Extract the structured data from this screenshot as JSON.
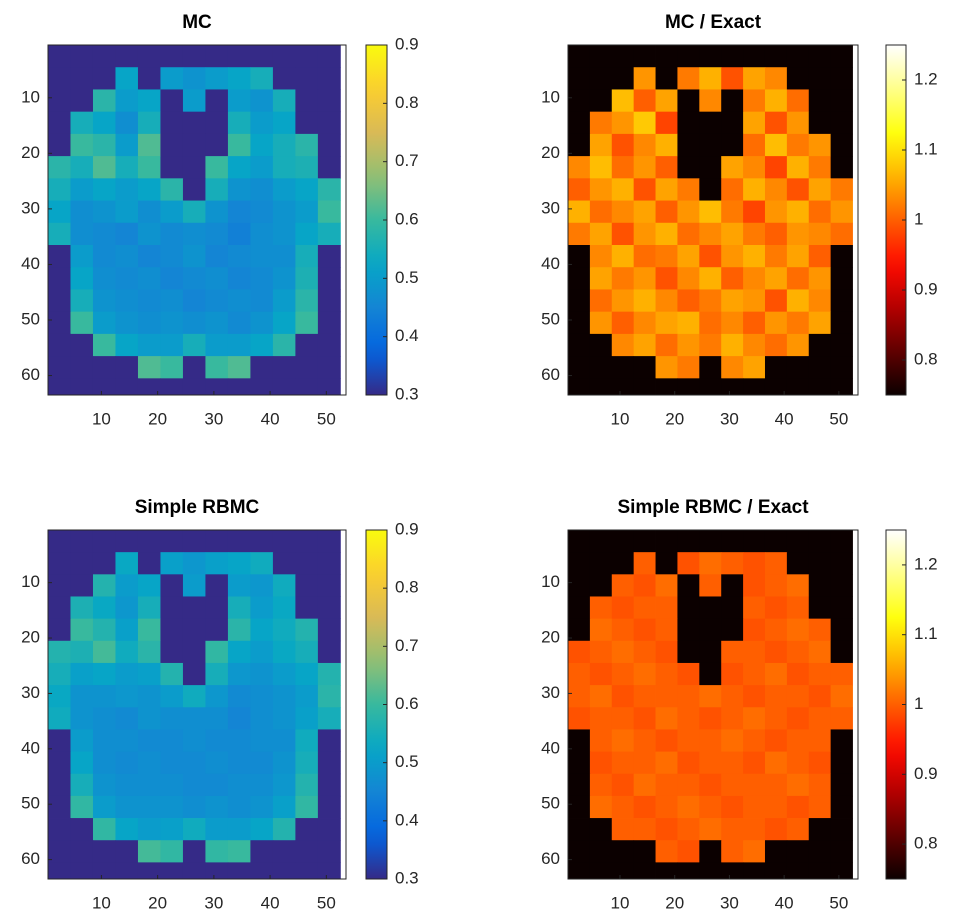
{
  "chart_data": [
    {
      "type": "heatmap",
      "title": "MC",
      "colormap": "parula",
      "clim": [
        0.3,
        0.9
      ],
      "cticks": [
        0.3,
        0.4,
        0.5,
        0.6,
        0.7,
        0.8,
        0.9
      ],
      "xlim": [
        0.5,
        53.5
      ],
      "ylim": [
        0.5,
        63.5
      ],
      "y_reversed": true,
      "xticks": [
        10,
        20,
        30,
        40,
        50
      ],
      "yticks": [
        10,
        20,
        30,
        40,
        50,
        60
      ],
      "x": [
        2.5,
        6.5,
        10.5,
        14.5,
        18.5,
        22.5,
        26.5,
        30.5,
        34.5,
        38.5,
        42.5,
        46.5,
        50.5
      ],
      "y": [
        2.5,
        6.5,
        10.5,
        14.5,
        18.5,
        22.5,
        26.5,
        30.5,
        34.5,
        38.5,
        42.5,
        46.5,
        50.5,
        54.5,
        58.5,
        62.5
      ],
      "z": [
        [
          0.3,
          0.3,
          0.3,
          0.3,
          0.3,
          0.3,
          0.3,
          0.3,
          0.3,
          0.3,
          0.3,
          0.3,
          0.3
        ],
        [
          0.3,
          0.3,
          0.3,
          0.52,
          0.3,
          0.5,
          0.48,
          0.5,
          0.52,
          0.55,
          0.3,
          0.3,
          0.3
        ],
        [
          0.3,
          0.3,
          0.58,
          0.5,
          0.52,
          0.3,
          0.5,
          0.3,
          0.5,
          0.48,
          0.55,
          0.3,
          0.3
        ],
        [
          0.3,
          0.55,
          0.52,
          0.47,
          0.55,
          0.3,
          0.3,
          0.3,
          0.55,
          0.5,
          0.52,
          0.3,
          0.3
        ],
        [
          0.3,
          0.6,
          0.58,
          0.5,
          0.62,
          0.3,
          0.3,
          0.3,
          0.6,
          0.52,
          0.55,
          0.58,
          0.3
        ],
        [
          0.58,
          0.55,
          0.62,
          0.55,
          0.6,
          0.3,
          0.3,
          0.6,
          0.52,
          0.5,
          0.55,
          0.56,
          0.3
        ],
        [
          0.55,
          0.5,
          0.52,
          0.5,
          0.52,
          0.58,
          0.3,
          0.55,
          0.48,
          0.47,
          0.5,
          0.52,
          0.58
        ],
        [
          0.52,
          0.47,
          0.48,
          0.5,
          0.47,
          0.5,
          0.55,
          0.48,
          0.45,
          0.46,
          0.48,
          0.5,
          0.6
        ],
        [
          0.55,
          0.47,
          0.46,
          0.45,
          0.48,
          0.46,
          0.47,
          0.46,
          0.44,
          0.47,
          0.48,
          0.52,
          0.55
        ],
        [
          0.3,
          0.5,
          0.46,
          0.47,
          0.45,
          0.46,
          0.48,
          0.45,
          0.46,
          0.47,
          0.47,
          0.55,
          0.3
        ],
        [
          0.3,
          0.52,
          0.47,
          0.46,
          0.47,
          0.45,
          0.46,
          0.47,
          0.45,
          0.46,
          0.48,
          0.56,
          0.3
        ],
        [
          0.3,
          0.55,
          0.48,
          0.47,
          0.46,
          0.47,
          0.45,
          0.46,
          0.47,
          0.46,
          0.5,
          0.58,
          0.3
        ],
        [
          0.3,
          0.6,
          0.5,
          0.48,
          0.47,
          0.48,
          0.47,
          0.48,
          0.46,
          0.48,
          0.52,
          0.6,
          0.3
        ],
        [
          0.3,
          0.3,
          0.6,
          0.52,
          0.5,
          0.5,
          0.55,
          0.5,
          0.5,
          0.52,
          0.58,
          0.3,
          0.3
        ],
        [
          0.3,
          0.3,
          0.3,
          0.3,
          0.62,
          0.6,
          0.3,
          0.6,
          0.62,
          0.3,
          0.3,
          0.3,
          0.3
        ],
        [
          0.3,
          0.3,
          0.3,
          0.3,
          0.3,
          0.3,
          0.3,
          0.3,
          0.3,
          0.3,
          0.3,
          0.3,
          0.3
        ]
      ]
    },
    {
      "type": "heatmap",
      "title": "MC / Exact",
      "colormap": "hot",
      "clim": [
        0.75,
        1.25
      ],
      "cticks": [
        0.8,
        0.9,
        1,
        1.1,
        1.2
      ],
      "xlim": [
        0.5,
        53.5
      ],
      "ylim": [
        0.5,
        63.5
      ],
      "y_reversed": true,
      "xticks": [
        10,
        20,
        30,
        40,
        50
      ],
      "yticks": [
        10,
        20,
        30,
        40,
        50,
        60
      ],
      "x": [
        2.5,
        6.5,
        10.5,
        14.5,
        18.5,
        22.5,
        26.5,
        30.5,
        34.5,
        38.5,
        42.5,
        46.5,
        50.5
      ],
      "y": [
        2.5,
        6.5,
        10.5,
        14.5,
        18.5,
        22.5,
        26.5,
        30.5,
        34.5,
        38.5,
        42.5,
        46.5,
        50.5,
        54.5,
        58.5,
        62.5
      ],
      "z": [
        [
          0.75,
          0.75,
          0.75,
          0.75,
          0.75,
          0.75,
          0.75,
          0.75,
          0.75,
          0.75,
          0.75,
          0.75,
          0.75
        ],
        [
          0.75,
          0.75,
          0.75,
          1.04,
          0.75,
          1.02,
          1.06,
          0.99,
          1.05,
          1.03,
          0.75,
          0.75,
          0.75
        ],
        [
          0.75,
          0.75,
          1.07,
          1.0,
          1.05,
          0.75,
          1.03,
          0.75,
          1.02,
          1.06,
          1.01,
          0.75,
          0.75
        ],
        [
          0.75,
          1.02,
          1.04,
          1.08,
          0.98,
          0.75,
          0.75,
          0.75,
          1.05,
          0.99,
          1.04,
          0.75,
          0.75
        ],
        [
          0.75,
          1.05,
          0.99,
          1.03,
          1.06,
          0.75,
          0.75,
          0.75,
          1.01,
          1.07,
          1.02,
          1.04,
          0.75
        ],
        [
          1.03,
          1.07,
          1.01,
          1.04,
          1.0,
          0.75,
          0.75,
          1.05,
          1.03,
          0.98,
          1.06,
          1.02,
          0.75
        ],
        [
          1.0,
          1.04,
          1.06,
          0.99,
          1.05,
          1.02,
          0.75,
          1.01,
          1.06,
          1.03,
          0.99,
          1.05,
          1.02
        ],
        [
          1.06,
          1.01,
          1.03,
          1.05,
          1.0,
          1.04,
          1.07,
          1.02,
          0.98,
          1.04,
          1.06,
          1.01,
          1.04
        ],
        [
          1.02,
          1.05,
          0.99,
          1.04,
          1.06,
          1.01,
          1.03,
          1.05,
          1.02,
          1.0,
          1.04,
          1.03,
          1.01
        ],
        [
          0.75,
          1.03,
          1.06,
          1.01,
          1.02,
          1.05,
          0.99,
          1.04,
          1.06,
          1.02,
          1.05,
          1.0,
          0.75
        ],
        [
          0.75,
          1.05,
          1.02,
          1.04,
          0.99,
          1.03,
          1.06,
          1.0,
          1.03,
          1.05,
          1.01,
          1.04,
          0.75
        ],
        [
          0.75,
          1.01,
          1.04,
          1.06,
          1.03,
          1.0,
          1.02,
          1.05,
          1.04,
          0.99,
          1.06,
          1.03,
          0.75
        ],
        [
          0.75,
          1.04,
          1.0,
          1.03,
          1.05,
          1.06,
          1.01,
          1.03,
          1.0,
          1.04,
          1.02,
          1.05,
          0.75
        ],
        [
          0.75,
          0.75,
          1.03,
          1.05,
          1.01,
          1.04,
          1.02,
          1.06,
          1.03,
          1.01,
          1.04,
          0.75,
          0.75
        ],
        [
          0.75,
          0.75,
          0.75,
          0.75,
          1.04,
          1.02,
          0.75,
          1.03,
          1.05,
          0.75,
          0.75,
          0.75,
          0.75
        ],
        [
          0.75,
          0.75,
          0.75,
          0.75,
          0.75,
          0.75,
          0.75,
          0.75,
          0.75,
          0.75,
          0.75,
          0.75,
          0.75
        ]
      ]
    },
    {
      "type": "heatmap",
      "title": "Simple RBMC",
      "colormap": "parula",
      "clim": [
        0.3,
        0.9
      ],
      "cticks": [
        0.3,
        0.4,
        0.5,
        0.6,
        0.7,
        0.8,
        0.9
      ],
      "xlim": [
        0.5,
        53.5
      ],
      "ylim": [
        0.5,
        63.5
      ],
      "y_reversed": true,
      "xticks": [
        10,
        20,
        30,
        40,
        50
      ],
      "yticks": [
        10,
        20,
        30,
        40,
        50,
        60
      ],
      "x": [
        2.5,
        6.5,
        10.5,
        14.5,
        18.5,
        22.5,
        26.5,
        30.5,
        34.5,
        38.5,
        42.5,
        46.5,
        50.5
      ],
      "y": [
        2.5,
        6.5,
        10.5,
        14.5,
        18.5,
        22.5,
        26.5,
        30.5,
        34.5,
        38.5,
        42.5,
        46.5,
        50.5,
        54.5,
        58.5,
        62.5
      ],
      "z": [
        [
          0.3,
          0.3,
          0.3,
          0.3,
          0.3,
          0.3,
          0.3,
          0.3,
          0.3,
          0.3,
          0.3,
          0.3,
          0.3
        ],
        [
          0.3,
          0.3,
          0.3,
          0.53,
          0.3,
          0.51,
          0.49,
          0.51,
          0.52,
          0.54,
          0.3,
          0.3,
          0.3
        ],
        [
          0.3,
          0.3,
          0.57,
          0.5,
          0.52,
          0.3,
          0.5,
          0.3,
          0.5,
          0.49,
          0.54,
          0.3,
          0.3
        ],
        [
          0.3,
          0.56,
          0.53,
          0.49,
          0.55,
          0.3,
          0.3,
          0.3,
          0.55,
          0.5,
          0.53,
          0.3,
          0.3
        ],
        [
          0.3,
          0.6,
          0.57,
          0.51,
          0.6,
          0.3,
          0.3,
          0.3,
          0.58,
          0.52,
          0.54,
          0.57,
          0.3
        ],
        [
          0.57,
          0.56,
          0.61,
          0.54,
          0.58,
          0.3,
          0.3,
          0.59,
          0.52,
          0.5,
          0.53,
          0.55,
          0.3
        ],
        [
          0.55,
          0.51,
          0.52,
          0.5,
          0.51,
          0.57,
          0.3,
          0.55,
          0.49,
          0.48,
          0.5,
          0.52,
          0.57
        ],
        [
          0.53,
          0.48,
          0.48,
          0.49,
          0.48,
          0.5,
          0.54,
          0.49,
          0.46,
          0.47,
          0.48,
          0.5,
          0.58
        ],
        [
          0.54,
          0.48,
          0.47,
          0.46,
          0.48,
          0.47,
          0.47,
          0.47,
          0.45,
          0.47,
          0.48,
          0.51,
          0.55
        ],
        [
          0.3,
          0.5,
          0.47,
          0.47,
          0.46,
          0.46,
          0.47,
          0.46,
          0.46,
          0.47,
          0.47,
          0.54,
          0.3
        ],
        [
          0.3,
          0.52,
          0.47,
          0.46,
          0.47,
          0.46,
          0.46,
          0.47,
          0.46,
          0.46,
          0.48,
          0.55,
          0.3
        ],
        [
          0.3,
          0.55,
          0.48,
          0.47,
          0.47,
          0.47,
          0.46,
          0.46,
          0.47,
          0.47,
          0.49,
          0.57,
          0.3
        ],
        [
          0.3,
          0.59,
          0.5,
          0.48,
          0.48,
          0.48,
          0.47,
          0.48,
          0.47,
          0.48,
          0.51,
          0.59,
          0.3
        ],
        [
          0.3,
          0.3,
          0.59,
          0.52,
          0.5,
          0.51,
          0.54,
          0.5,
          0.5,
          0.52,
          0.57,
          0.3,
          0.3
        ],
        [
          0.3,
          0.3,
          0.3,
          0.3,
          0.61,
          0.59,
          0.3,
          0.59,
          0.6,
          0.3,
          0.3,
          0.3,
          0.3
        ],
        [
          0.3,
          0.3,
          0.3,
          0.3,
          0.3,
          0.3,
          0.3,
          0.3,
          0.3,
          0.3,
          0.3,
          0.3,
          0.3
        ]
      ]
    },
    {
      "type": "heatmap",
      "title": "Simple RBMC / Exact",
      "colormap": "hot",
      "clim": [
        0.75,
        1.25
      ],
      "cticks": [
        0.8,
        0.9,
        1,
        1.1,
        1.2
      ],
      "xlim": [
        0.5,
        53.5
      ],
      "ylim": [
        0.5,
        63.5
      ],
      "y_reversed": true,
      "xticks": [
        10,
        20,
        30,
        40,
        50
      ],
      "yticks": [
        10,
        20,
        30,
        40,
        50,
        60
      ],
      "x": [
        2.5,
        6.5,
        10.5,
        14.5,
        18.5,
        22.5,
        26.5,
        30.5,
        34.5,
        38.5,
        42.5,
        46.5,
        50.5
      ],
      "y": [
        2.5,
        6.5,
        10.5,
        14.5,
        18.5,
        22.5,
        26.5,
        30.5,
        34.5,
        38.5,
        42.5,
        46.5,
        50.5,
        54.5,
        58.5,
        62.5
      ],
      "z": [
        [
          0.75,
          0.75,
          0.75,
          0.75,
          0.75,
          0.75,
          0.75,
          0.75,
          0.75,
          0.75,
          0.75,
          0.75,
          0.75
        ],
        [
          0.75,
          0.75,
          0.75,
          1.0,
          0.75,
          0.99,
          1.01,
          1.0,
          0.99,
          1.0,
          0.75,
          0.75,
          0.75
        ],
        [
          0.75,
          0.75,
          1.0,
          0.99,
          1.01,
          0.75,
          1.0,
          0.75,
          0.99,
          1.0,
          1.01,
          0.75,
          0.75
        ],
        [
          0.75,
          1.0,
          0.99,
          1.0,
          1.0,
          0.75,
          0.75,
          0.75,
          1.0,
          0.99,
          1.0,
          0.75,
          0.75
        ],
        [
          0.75,
          1.01,
          1.0,
          0.99,
          1.0,
          0.75,
          0.75,
          0.75,
          0.99,
          1.0,
          1.01,
          1.0,
          0.75
        ],
        [
          0.99,
          1.0,
          1.01,
          1.0,
          0.99,
          0.75,
          0.75,
          1.0,
          1.0,
          0.99,
          1.0,
          1.01,
          0.75
        ],
        [
          1.0,
          0.99,
          1.0,
          1.01,
          1.0,
          0.99,
          0.75,
          0.99,
          1.0,
          1.01,
          0.99,
          1.0,
          1.0
        ],
        [
          1.0,
          1.01,
          0.99,
          1.0,
          1.0,
          1.0,
          1.01,
          1.0,
          0.99,
          1.0,
          1.0,
          0.99,
          1.01
        ],
        [
          0.99,
          1.0,
          1.0,
          0.99,
          1.01,
          1.0,
          0.99,
          1.0,
          1.01,
          1.0,
          0.99,
          1.0,
          1.0
        ],
        [
          0.75,
          1.0,
          1.01,
          1.0,
          0.99,
          1.0,
          1.0,
          1.01,
          1.0,
          0.99,
          1.0,
          1.0,
          0.75
        ],
        [
          0.75,
          0.99,
          1.0,
          1.0,
          1.01,
          0.99,
          1.0,
          1.0,
          0.99,
          1.01,
          1.0,
          0.99,
          0.75
        ],
        [
          0.75,
          1.0,
          0.99,
          1.01,
          1.0,
          1.0,
          0.99,
          1.0,
          1.0,
          1.0,
          1.01,
          1.0,
          0.75
        ],
        [
          0.75,
          1.01,
          1.0,
          0.99,
          1.0,
          1.01,
          1.0,
          0.99,
          1.0,
          1.0,
          0.99,
          1.0,
          0.75
        ],
        [
          0.75,
          0.75,
          1.0,
          1.0,
          0.99,
          1.0,
          1.01,
          1.0,
          1.0,
          0.99,
          1.0,
          0.75,
          0.75
        ],
        [
          0.75,
          0.75,
          0.75,
          0.75,
          1.0,
          0.99,
          0.75,
          1.0,
          1.01,
          0.75,
          0.75,
          0.75,
          0.75
        ],
        [
          0.75,
          0.75,
          0.75,
          0.75,
          0.75,
          0.75,
          0.75,
          0.75,
          0.75,
          0.75,
          0.75,
          0.75,
          0.75
        ]
      ]
    }
  ]
}
